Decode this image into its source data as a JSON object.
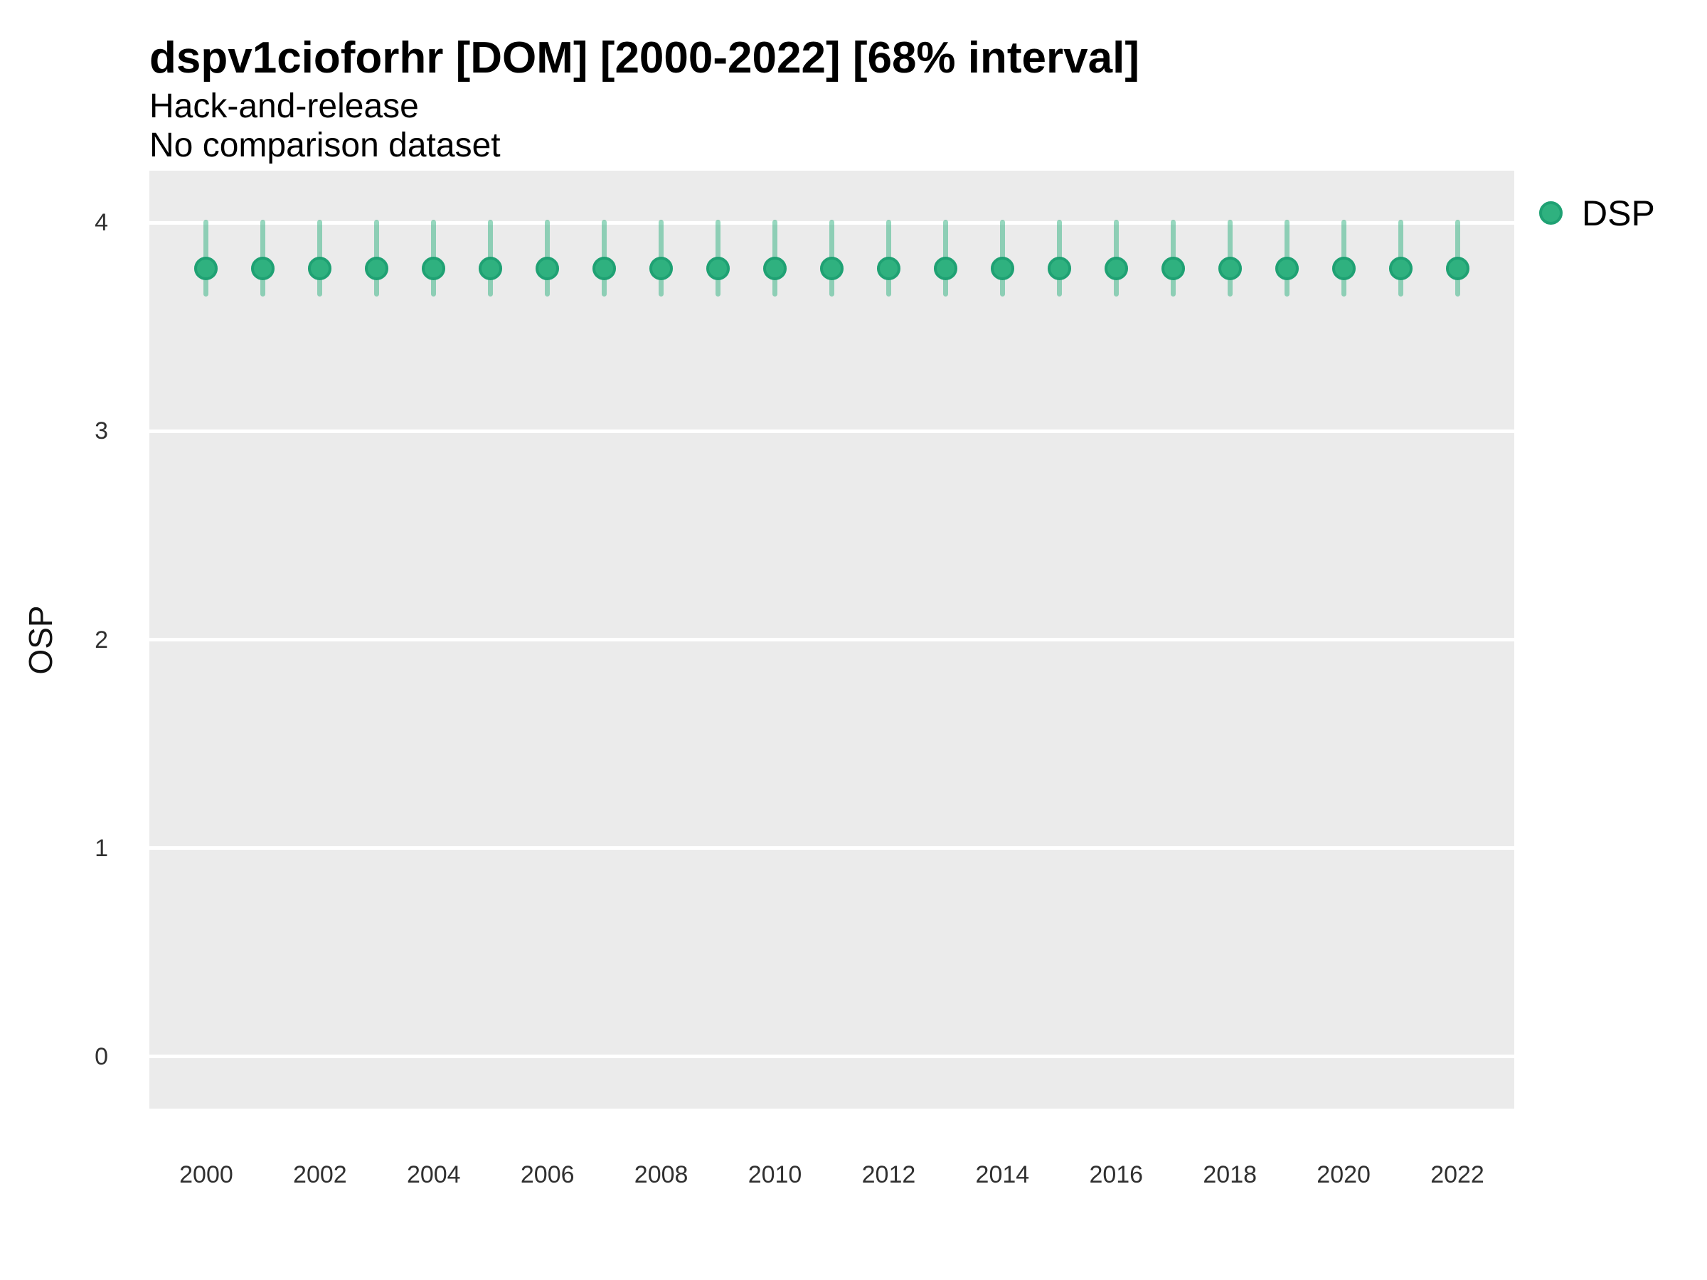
{
  "title": "dspv1cioforhr [DOM] [2000-2022] [68% interval]",
  "subtitle_line1": "Hack-and-release",
  "subtitle_line2": "No comparison dataset",
  "y_axis_title": "OSP",
  "legend": {
    "label": "DSP"
  },
  "colors": {
    "point_fill": "#2FB17F",
    "point_stroke": "#1FA173",
    "interval_bar": "rgba(47,177,127,0.5)",
    "panel_background": "#EBEBEB",
    "gridline": "#FFFFFF",
    "axis_text": "#303030",
    "title_text": "#000000"
  },
  "chart_data": {
    "type": "scatter",
    "title": "dspv1cioforhr [DOM] [2000-2022] [68% interval]",
    "subtitle": [
      "Hack-and-release",
      "No comparison dataset"
    ],
    "xlabel": "",
    "ylabel": "OSP",
    "legend_position": "right",
    "grid": "horizontal major gridlines only",
    "interval": "68%",
    "xlim": [
      1999,
      2023
    ],
    "ylim": [
      -0.25,
      4.25
    ],
    "xticks": [
      2000,
      2002,
      2004,
      2006,
      2008,
      2010,
      2012,
      2014,
      2016,
      2018,
      2020,
      2022
    ],
    "yticks": [
      0,
      1,
      2,
      3,
      4
    ],
    "series": [
      {
        "name": "DSP",
        "x": [
          2000,
          2001,
          2002,
          2003,
          2004,
          2005,
          2006,
          2007,
          2008,
          2009,
          2010,
          2011,
          2012,
          2013,
          2014,
          2015,
          2016,
          2017,
          2018,
          2019,
          2020,
          2021,
          2022
        ],
        "y": [
          3.78,
          3.78,
          3.78,
          3.78,
          3.78,
          3.78,
          3.78,
          3.78,
          3.78,
          3.78,
          3.78,
          3.78,
          3.78,
          3.78,
          3.78,
          3.78,
          3.78,
          3.78,
          3.78,
          3.78,
          3.78,
          3.78,
          3.78
        ],
        "interval_low": [
          3.66,
          3.66,
          3.66,
          3.66,
          3.66,
          3.66,
          3.66,
          3.66,
          3.66,
          3.66,
          3.66,
          3.66,
          3.66,
          3.66,
          3.66,
          3.66,
          3.66,
          3.66,
          3.66,
          3.66,
          3.66,
          3.66,
          3.66
        ],
        "interval_high": [
          4.0,
          4.0,
          4.0,
          4.0,
          4.0,
          4.0,
          4.0,
          4.0,
          4.0,
          4.0,
          4.0,
          4.0,
          4.0,
          4.0,
          4.0,
          4.0,
          4.0,
          4.0,
          4.0,
          4.0,
          4.0,
          4.0,
          4.0
        ]
      }
    ]
  }
}
